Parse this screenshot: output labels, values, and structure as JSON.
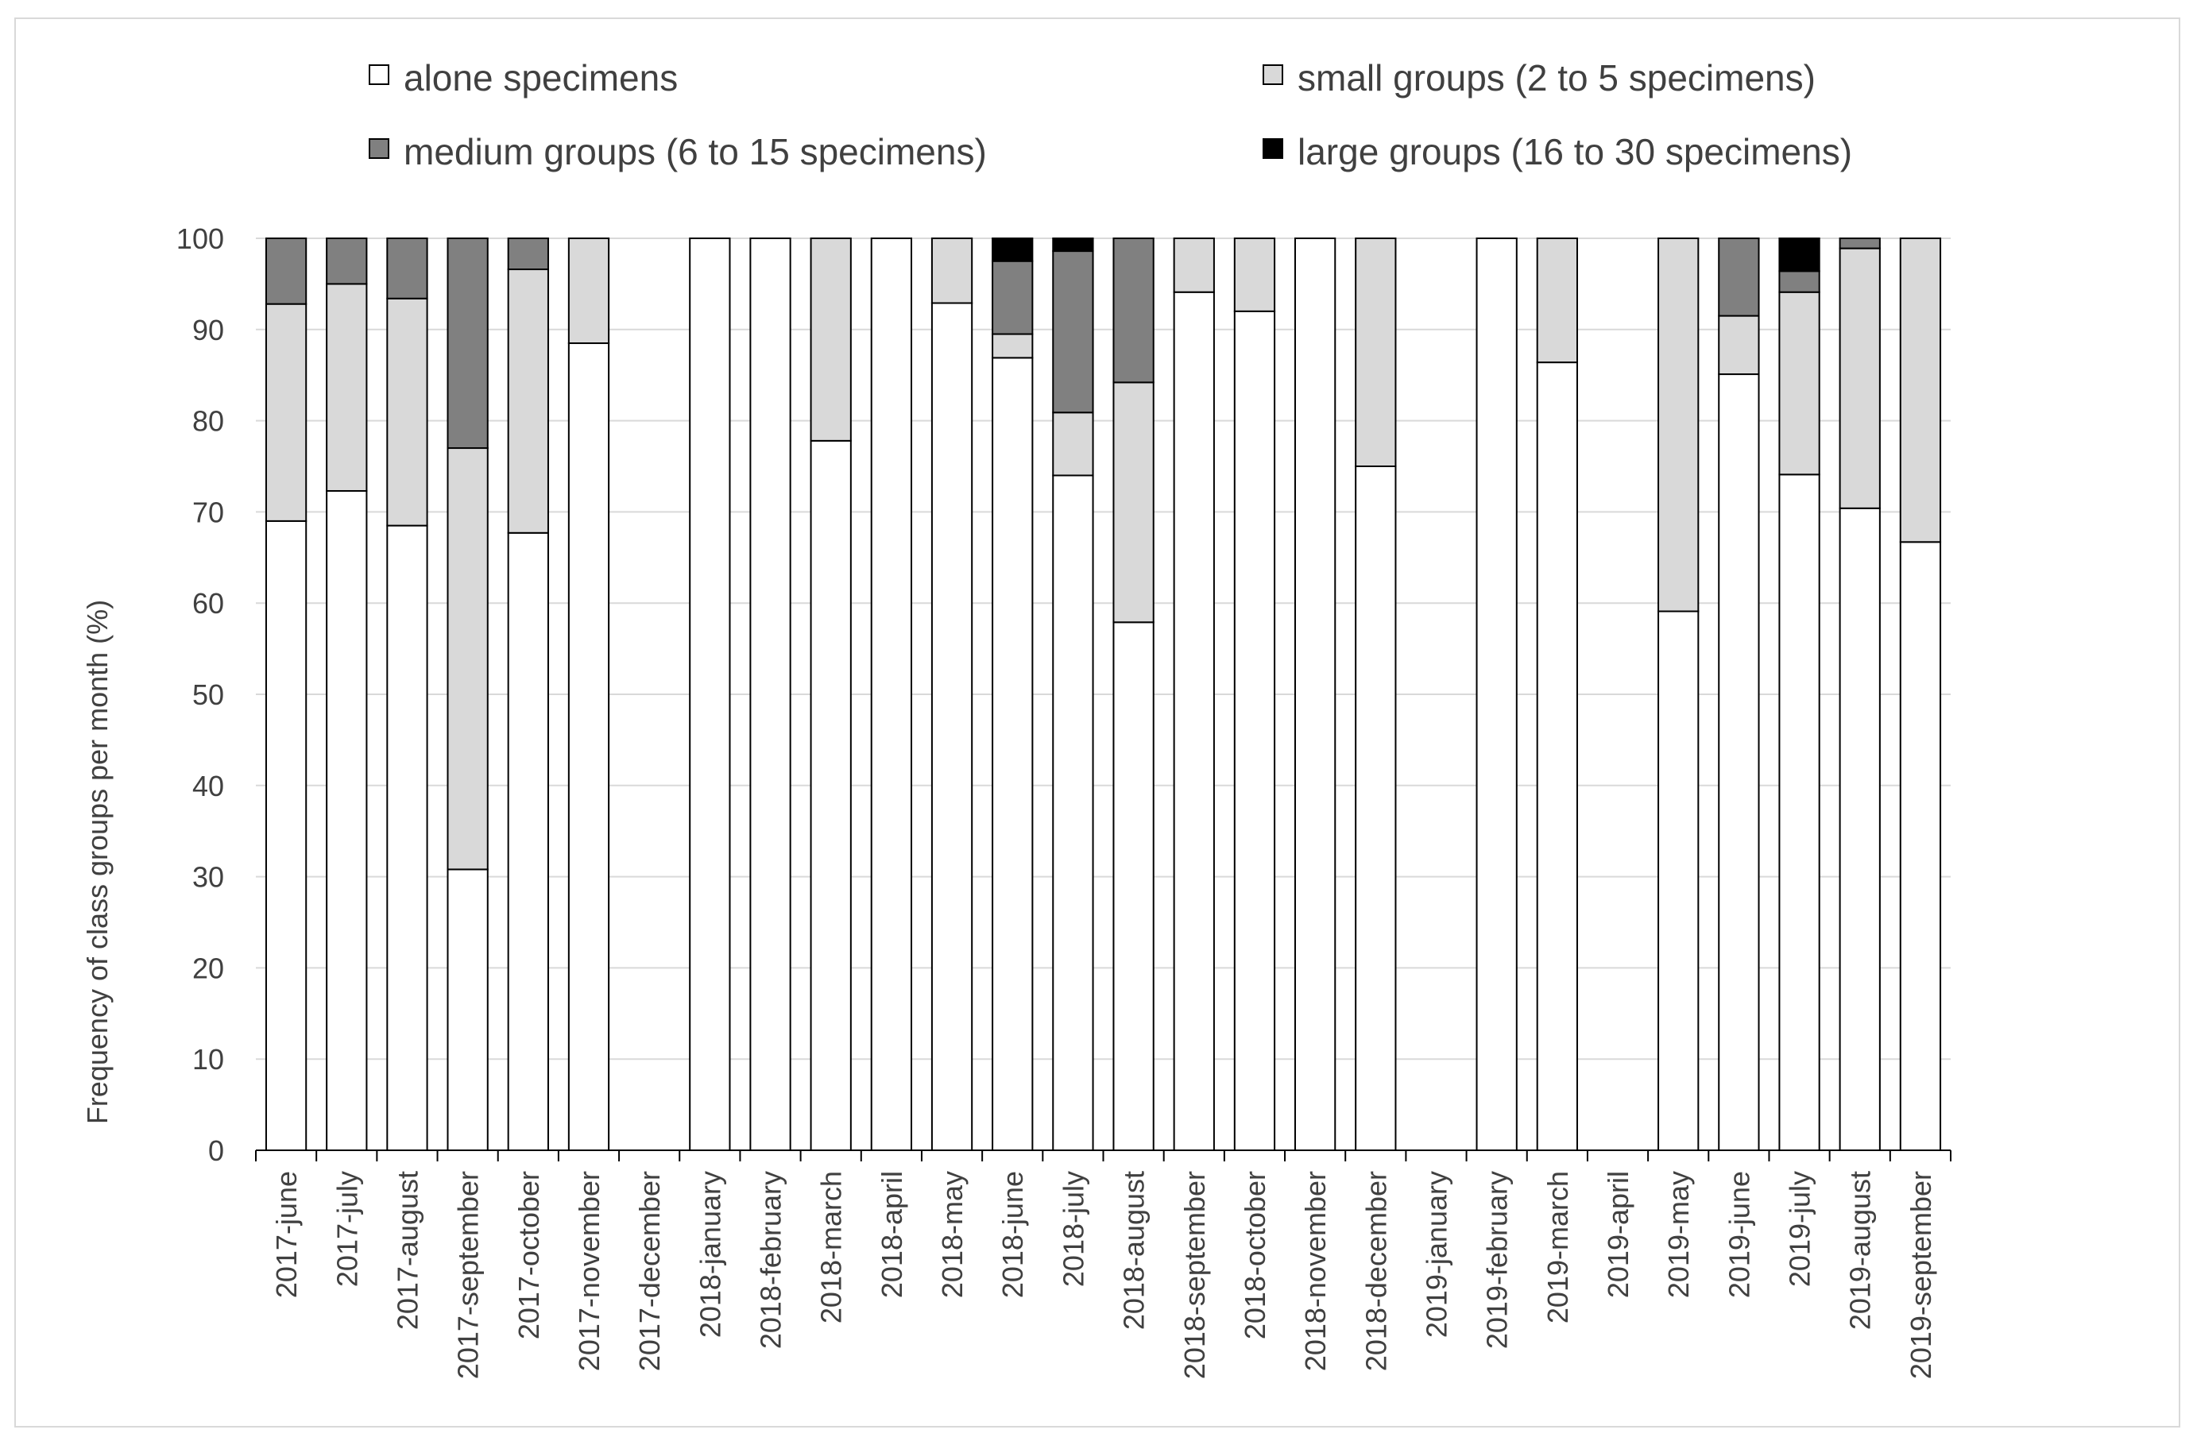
{
  "chart_data": {
    "type": "bar",
    "stacked": true,
    "title": "",
    "xlabel": "",
    "ylabel": "Frequency of class groups per month (%)",
    "ylim": [
      0,
      100
    ],
    "yticks": [
      0,
      10,
      20,
      30,
      40,
      50,
      60,
      70,
      80,
      90,
      100
    ],
    "grid": true,
    "legend_position": "top",
    "categories": [
      "2017-june",
      "2017-july",
      "2017-august",
      "2017-september",
      "2017-october",
      "2017-november",
      "2017-december",
      "2018-january",
      "2018-february",
      "2018-march",
      "2018-april",
      "2018-may",
      "2018-june",
      "2018-july",
      "2018-august",
      "2018-september",
      "2018-october",
      "2018-november",
      "2018-december",
      "2019-january",
      "2019-february",
      "2019-march",
      "2019-april",
      "2019-may",
      "2019-june",
      "2019-july",
      "2019-august",
      "2019-september"
    ],
    "series": [
      {
        "name": "alone specimens",
        "color": "#ffffff",
        "values": [
          69,
          72.3,
          68.5,
          30.8,
          67.7,
          88.5,
          0,
          100,
          100,
          77.8,
          100,
          92.9,
          86.9,
          74,
          57.9,
          94.1,
          92,
          100,
          75,
          0,
          100,
          86.4,
          0,
          59.1,
          85.1,
          74.1,
          70.4,
          66.7
        ]
      },
      {
        "name": "small groups (2 to 5 specimens)",
        "color": "#d9d9d9",
        "values": [
          23.8,
          22.7,
          24.9,
          46.2,
          28.9,
          11.5,
          0,
          0,
          0,
          22.2,
          0,
          7.1,
          2.6,
          6.9,
          26.3,
          5.9,
          8,
          0,
          25,
          0,
          0,
          13.6,
          0,
          40.9,
          6.4,
          20,
          28.5,
          33.3
        ]
      },
      {
        "name": "medium groups (6 to 15 specimens)",
        "color": "#808080",
        "values": [
          7.2,
          5,
          6.6,
          23,
          3.4,
          0,
          0,
          0,
          0,
          0,
          0,
          0,
          8,
          17.7,
          15.8,
          0,
          0,
          0,
          0,
          0,
          0,
          0,
          0,
          0,
          8.5,
          2.3,
          1.1,
          0
        ]
      },
      {
        "name": "large groups (16 to 30 specimens)",
        "color": "#000000",
        "values": [
          0,
          0,
          0,
          0,
          0,
          0,
          0,
          0,
          0,
          0,
          0,
          0,
          2.5,
          1.4,
          0,
          0,
          0,
          0,
          0,
          0,
          0,
          0,
          0,
          0,
          0,
          3.6,
          0,
          0
        ]
      }
    ]
  }
}
